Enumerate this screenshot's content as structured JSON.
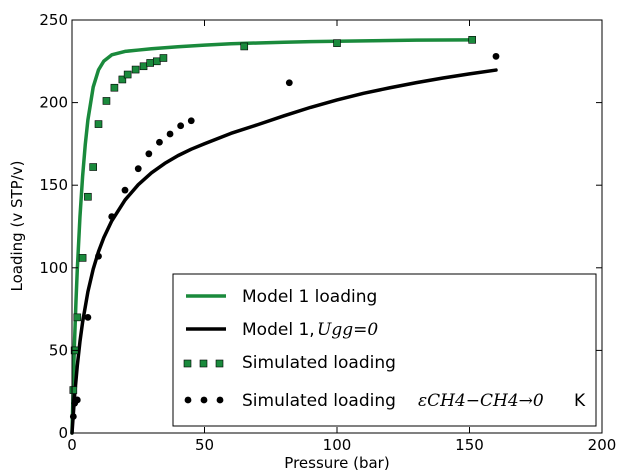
{
  "chart_data": {
    "type": "line",
    "title": "",
    "xlabel": "Pressure (bar)",
    "ylabel": "Loading (v STP/v)",
    "xlim": [
      0,
      200
    ],
    "ylim": [
      0,
      250
    ],
    "xticks": [
      0,
      50,
      100,
      150,
      200
    ],
    "yticks": [
      0,
      50,
      100,
      150,
      200,
      250
    ],
    "xtick_labels": [
      "0",
      "50",
      "100",
      "150",
      "200"
    ],
    "ytick_labels": [
      "0",
      "50",
      "100",
      "150",
      "200",
      "250"
    ],
    "grid": false,
    "legend_position": "lower-right",
    "series": [
      {
        "name": "Model 1 loading",
        "kind": "line",
        "color": "#1a8a3c",
        "x": [
          0,
          0.5,
          1,
          1.5,
          2,
          3,
          4,
          5,
          6,
          8,
          10,
          12,
          15,
          20,
          25,
          30,
          35,
          40,
          50,
          60,
          70,
          80,
          90,
          100,
          110,
          120,
          130,
          140,
          150
        ],
        "y": [
          0,
          31.1,
          57.2,
          79.6,
          99.0,
          130.8,
          155.3,
          174.5,
          189.5,
          209.4,
          219.8,
          225.1,
          228.9,
          231.0,
          231.8,
          232.6,
          233.2,
          233.8,
          234.8,
          235.6,
          236.1,
          236.5,
          236.9,
          237.1,
          237.4,
          237.6,
          237.8,
          237.9,
          238.0
        ]
      },
      {
        "name": "Model 1,",
        "kind": "line",
        "color": "#000000",
        "x": [
          0,
          1,
          2,
          3,
          4,
          6,
          8,
          10,
          12,
          15,
          20,
          25,
          30,
          35,
          40,
          45,
          50,
          60,
          70,
          80,
          90,
          100,
          110,
          120,
          130,
          140,
          150,
          160
        ],
        "y": [
          0,
          22.9,
          40.8,
          55.3,
          67.1,
          85.5,
          99.2,
          109.8,
          118.3,
          128.4,
          141.0,
          150.3,
          157.5,
          163.2,
          167.9,
          171.8,
          175.1,
          181.4,
          186.6,
          192.0,
          197.1,
          201.6,
          205.6,
          209.0,
          212.1,
          214.9,
          217.4,
          219.7
        ]
      },
      {
        "name": "Simulated loading",
        "kind": "scatter",
        "marker": "square",
        "color": "#1a8a3c",
        "x": [
          0.5,
          1,
          2,
          4,
          6,
          8,
          10,
          13,
          16,
          19,
          21,
          24,
          27,
          29.5,
          32,
          34.5,
          65,
          100,
          151
        ],
        "y": [
          26,
          50,
          70,
          106,
          143,
          161,
          187,
          201,
          209,
          214,
          217,
          220,
          222,
          224,
          225,
          227,
          234,
          236,
          238
        ]
      },
      {
        "name": "Simulated loading",
        "kind": "scatter",
        "marker": "circle",
        "color": "#000000",
        "x": [
          0.5,
          1,
          2,
          6,
          10,
          15,
          20,
          25,
          29,
          33,
          37,
          41,
          45,
          82,
          160
        ],
        "y": [
          10,
          18,
          20,
          70,
          107,
          131,
          147,
          160,
          169,
          176,
          181,
          186,
          189,
          212,
          228
        ]
      }
    ],
    "legend": {
      "entries": [
        {
          "label": "Model 1 loading",
          "math": "",
          "tail": ""
        },
        {
          "label": "Model 1,",
          "math": "Ugg=0",
          "tail": ""
        },
        {
          "label": "Simulated loading",
          "math": "",
          "tail": ""
        },
        {
          "label": "Simulated loading",
          "math": "εCH4−CH4→0",
          "tail": "K"
        }
      ]
    }
  }
}
